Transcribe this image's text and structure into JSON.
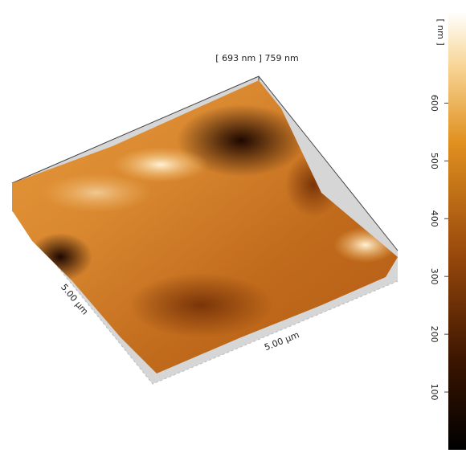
{
  "image": {
    "height_label": "[ 693 nm ] 759 nm",
    "x_label": "5.00 µm",
    "y_label": "5.00 µm"
  },
  "colorbar": {
    "unit": "[ nm ]",
    "range": [
      0,
      759
    ],
    "ticks": [
      100,
      200,
      300,
      400,
      500,
      600
    ]
  }
}
